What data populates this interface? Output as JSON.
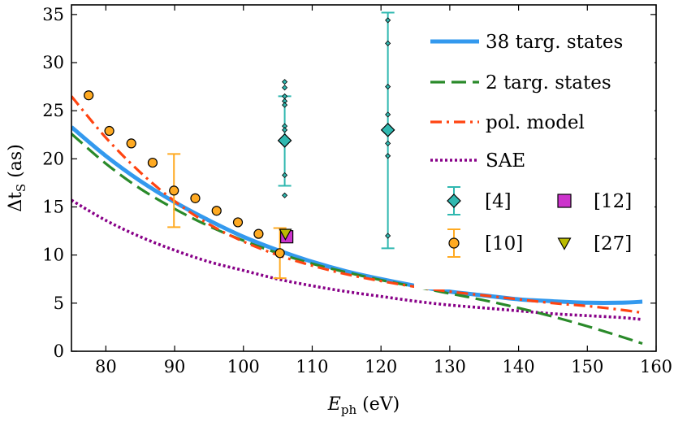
{
  "chart_data": {
    "type": "line",
    "xlabel": {
      "main": "E",
      "sub": "ph",
      "unit": " (eV)"
    },
    "ylabel": {
      "main": "Δt",
      "sub": "S",
      "unit": " (as)"
    },
    "xlim": [
      75,
      160
    ],
    "ylim": [
      0,
      36
    ],
    "xticks": [
      "80",
      "90",
      "100",
      "110",
      "120",
      "130",
      "140",
      "150",
      "160"
    ],
    "yticks": [
      "0",
      "5",
      "10",
      "15",
      "20",
      "25",
      "30",
      "35"
    ],
    "lines": [
      {
        "name": "38 targ. states",
        "color": "#3399ee",
        "style": "solid",
        "x": [
          75,
          80,
          85,
          90,
          95,
          100,
          105,
          110,
          115,
          120,
          125,
          130,
          135,
          140,
          145,
          150,
          155,
          158
        ],
        "y": [
          23.3,
          20.3,
          17.7,
          15.5,
          13.6,
          11.9,
          10.5,
          9.3,
          8.3,
          7.5,
          6.8,
          6.2,
          5.8,
          5.4,
          5.2,
          5.05,
          5.05,
          5.15
        ]
      },
      {
        "name": "2 targ. states",
        "color": "#2a8a2a",
        "style": "dashed",
        "x": [
          75,
          80,
          85,
          90,
          95,
          100,
          105,
          110,
          115,
          120,
          125,
          130,
          135,
          140,
          145,
          150,
          155,
          158
        ],
        "y": [
          22.6,
          19.5,
          16.9,
          14.8,
          13.0,
          11.5,
          10.2,
          9.1,
          8.2,
          7.4,
          6.7,
          6.0,
          5.3,
          4.5,
          3.6,
          2.6,
          1.5,
          0.8
        ]
      },
      {
        "name": "pol. model",
        "color": "#ff4411",
        "style": "dashdot",
        "x": [
          75,
          80,
          85,
          90,
          95,
          100,
          105,
          110,
          115,
          120,
          125,
          130,
          135,
          140,
          145,
          150,
          155,
          158
        ],
        "y": [
          26.5,
          22.2,
          18.6,
          15.6,
          13.2,
          11.4,
          10.0,
          8.9,
          8.0,
          7.3,
          6.7,
          6.2,
          5.8,
          5.4,
          5.0,
          4.7,
          4.3,
          4.0
        ]
      },
      {
        "name": "SAE",
        "color": "#880088",
        "style": "dotted",
        "x": [
          75,
          80,
          85,
          90,
          95,
          100,
          105,
          110,
          115,
          120,
          125,
          130,
          135,
          140,
          145,
          150,
          155,
          158
        ],
        "y": [
          15.7,
          13.6,
          11.9,
          10.5,
          9.3,
          8.4,
          7.5,
          6.8,
          6.2,
          5.7,
          5.2,
          4.8,
          4.5,
          4.2,
          3.9,
          3.7,
          3.5,
          3.3
        ]
      }
    ],
    "markers": [
      {
        "name": "[4]",
        "shape": "diamond",
        "color": "#30b8b0",
        "errcolor": "#30b8b0",
        "points": [
          {
            "x": 106,
            "y": 21.9,
            "yerr_low": 17.2,
            "yerr_high": 26.5,
            "scatter": [
              28.0,
              27.4,
              26.5,
              26.0,
              25.6,
              23.4,
              23.0,
              18.3,
              16.2,
              12.5,
              12.0
            ]
          },
          {
            "x": 121,
            "y": 23.0,
            "yerr_low": 10.7,
            "yerr_high": 35.2,
            "scatter": [
              34.4,
              32.0,
              27.5,
              24.6,
              21.6,
              20.3,
              12.0
            ]
          }
        ]
      },
      {
        "name": "[10]",
        "shape": "circle",
        "color": "#ffaa22",
        "errcolor": "#ffaa22",
        "points": [
          {
            "x": 77.5,
            "y": 26.6
          },
          {
            "x": 80.5,
            "y": 22.9
          },
          {
            "x": 83.7,
            "y": 21.6
          },
          {
            "x": 86.8,
            "y": 19.6
          },
          {
            "x": 89.9,
            "y": 16.7,
            "yerr_low": 12.9,
            "yerr_high": 20.5
          },
          {
            "x": 93.0,
            "y": 15.9
          },
          {
            "x": 96.1,
            "y": 14.6
          },
          {
            "x": 99.2,
            "y": 13.4
          },
          {
            "x": 102.2,
            "y": 12.2
          },
          {
            "x": 105.3,
            "y": 10.2,
            "yerr_low": 7.6,
            "yerr_high": 12.8
          }
        ]
      },
      {
        "name": "[12]",
        "shape": "square",
        "color": "#cc33cc",
        "points": [
          {
            "x": 106.3,
            "y": 11.9
          }
        ]
      },
      {
        "name": "[27]",
        "shape": "triangle-down",
        "color": "#bbbb00",
        "points": [
          {
            "x": 106.1,
            "y": 12.2
          }
        ]
      }
    ],
    "legend": {
      "position": "top-right"
    }
  }
}
